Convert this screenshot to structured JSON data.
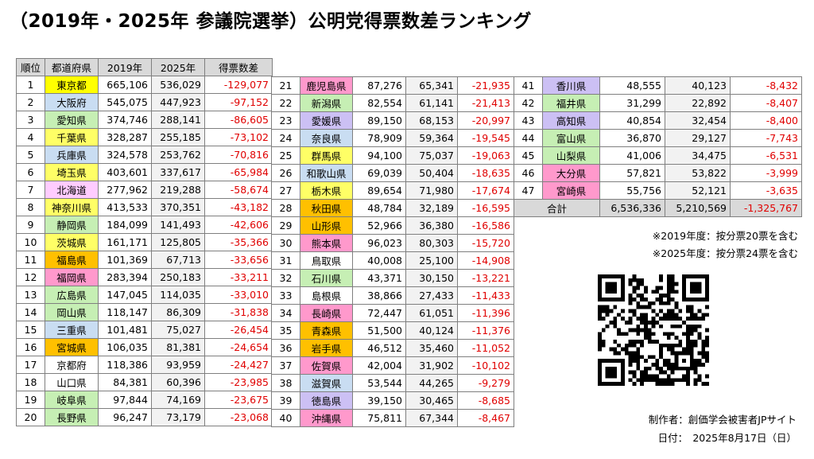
{
  "title": "（2019年・2025年 参議院選挙）公明党得票数差ランキング",
  "headers": {
    "rank": "順位",
    "pref": "都道府県",
    "y2019": "2019年",
    "y2025": "2025年",
    "diff": "得票数差"
  },
  "colors": {
    "red": "#ff7c80",
    "pink": "#ffccff",
    "yellow": "#ffff66",
    "lightblue": "#b4c7e7",
    "green": "#c6efce",
    "purple": "#ccc0f4",
    "orange": "#ffc000",
    "gray": "#ffffff"
  },
  "rows": [
    {
      "rank": "1",
      "pref": "東京都",
      "v2019": "665,106",
      "v2025": "536,029",
      "diff": "-129,077",
      "color": "#ffff00"
    },
    {
      "rank": "2",
      "pref": "大阪府",
      "v2019": "545,075",
      "v2025": "447,923",
      "diff": "-97,152",
      "color": "#c9ddf2"
    },
    {
      "rank": "3",
      "pref": "愛知県",
      "v2019": "374,746",
      "v2025": "288,141",
      "diff": "-86,605",
      "color": "#c6efb4"
    },
    {
      "rank": "4",
      "pref": "千葉県",
      "v2019": "328,287",
      "v2025": "255,185",
      "diff": "-73,102",
      "color": "#ffff66"
    },
    {
      "rank": "5",
      "pref": "兵庫県",
      "v2019": "324,578",
      "v2025": "253,762",
      "diff": "-70,816",
      "color": "#c9ddf2"
    },
    {
      "rank": "6",
      "pref": "埼玉県",
      "v2019": "403,601",
      "v2025": "337,617",
      "diff": "-65,984",
      "color": "#ffff66"
    },
    {
      "rank": "7",
      "pref": "北海道",
      "v2019": "277,962",
      "v2025": "219,288",
      "diff": "-58,674",
      "color": "#ffccff"
    },
    {
      "rank": "8",
      "pref": "神奈川県",
      "v2019": "413,533",
      "v2025": "370,351",
      "diff": "-43,182",
      "color": "#ffff66"
    },
    {
      "rank": "9",
      "pref": "静岡県",
      "v2019": "184,099",
      "v2025": "141,493",
      "diff": "-42,606",
      "color": "#c6efb4"
    },
    {
      "rank": "10",
      "pref": "茨城県",
      "v2019": "161,171",
      "v2025": "125,805",
      "diff": "-35,366",
      "color": "#ffff66"
    },
    {
      "rank": "11",
      "pref": "福島県",
      "v2019": "101,369",
      "v2025": "67,713",
      "diff": "-33,656",
      "color": "#ffc000"
    },
    {
      "rank": "12",
      "pref": "福岡県",
      "v2019": "283,394",
      "v2025": "250,183",
      "diff": "-33,211",
      "color": "#ff99cc"
    },
    {
      "rank": "13",
      "pref": "広島県",
      "v2019": "147,045",
      "v2025": "114,035",
      "diff": "-33,010",
      "color": "#c6efb4"
    },
    {
      "rank": "14",
      "pref": "岡山県",
      "v2019": "118,147",
      "v2025": "86,309",
      "diff": "-31,838",
      "color": "#c6efb4"
    },
    {
      "rank": "15",
      "pref": "三重県",
      "v2019": "101,481",
      "v2025": "75,027",
      "diff": "-26,454",
      "color": "#c9ddf2"
    },
    {
      "rank": "16",
      "pref": "宮城県",
      "v2019": "106,035",
      "v2025": "81,381",
      "diff": "-24,654",
      "color": "#ffc000"
    },
    {
      "rank": "17",
      "pref": "京都府",
      "v2019": "118,386",
      "v2025": "93,959",
      "diff": "-24,427",
      "color": "#ffffff"
    },
    {
      "rank": "18",
      "pref": "山口県",
      "v2019": "84,381",
      "v2025": "60,396",
      "diff": "-23,985",
      "color": "#ffffff"
    },
    {
      "rank": "19",
      "pref": "岐阜県",
      "v2019": "97,844",
      "v2025": "74,169",
      "diff": "-23,675",
      "color": "#c6efb4"
    },
    {
      "rank": "20",
      "pref": "長野県",
      "v2019": "96,247",
      "v2025": "73,179",
      "diff": "-23,068",
      "color": "#c6efb4"
    },
    {
      "rank": "21",
      "pref": "鹿児島県",
      "v2019": "87,276",
      "v2025": "65,341",
      "diff": "-21,935",
      "color": "#ff99cc"
    },
    {
      "rank": "22",
      "pref": "新潟県",
      "v2019": "82,554",
      "v2025": "61,141",
      "diff": "-21,413",
      "color": "#c6efb4"
    },
    {
      "rank": "23",
      "pref": "愛媛県",
      "v2019": "89,150",
      "v2025": "68,153",
      "diff": "-20,997",
      "color": "#ccc0f4"
    },
    {
      "rank": "24",
      "pref": "奈良県",
      "v2019": "78,909",
      "v2025": "59,364",
      "diff": "-19,545",
      "color": "#c9ddf2"
    },
    {
      "rank": "25",
      "pref": "群馬県",
      "v2019": "94,100",
      "v2025": "75,037",
      "diff": "-19,063",
      "color": "#ffff66"
    },
    {
      "rank": "26",
      "pref": "和歌山県",
      "v2019": "69,039",
      "v2025": "50,404",
      "diff": "-18,635",
      "color": "#c9ddf2"
    },
    {
      "rank": "27",
      "pref": "栃木県",
      "v2019": "89,654",
      "v2025": "71,980",
      "diff": "-17,674",
      "color": "#ffff66"
    },
    {
      "rank": "28",
      "pref": "秋田県",
      "v2019": "48,784",
      "v2025": "32,189",
      "diff": "-16,595",
      "color": "#ffc000"
    },
    {
      "rank": "29",
      "pref": "山形県",
      "v2019": "52,966",
      "v2025": "36,380",
      "diff": "-16,586",
      "color": "#ffc000"
    },
    {
      "rank": "30",
      "pref": "熊本県",
      "v2019": "96,023",
      "v2025": "80,303",
      "diff": "-15,720",
      "color": "#ff99cc"
    },
    {
      "rank": "31",
      "pref": "鳥取県",
      "v2019": "40,008",
      "v2025": "25,100",
      "diff": "-14,908",
      "color": "#ffffff"
    },
    {
      "rank": "32",
      "pref": "石川県",
      "v2019": "43,371",
      "v2025": "30,150",
      "diff": "-13,221",
      "color": "#c6efb4"
    },
    {
      "rank": "33",
      "pref": "島根県",
      "v2019": "38,866",
      "v2025": "27,433",
      "diff": "-11,433",
      "color": "#ffffff"
    },
    {
      "rank": "34",
      "pref": "長崎県",
      "v2019": "72,447",
      "v2025": "61,051",
      "diff": "-11,396",
      "color": "#ff99cc"
    },
    {
      "rank": "35",
      "pref": "青森県",
      "v2019": "51,500",
      "v2025": "40,124",
      "diff": "-11,376",
      "color": "#ffc000"
    },
    {
      "rank": "36",
      "pref": "岩手県",
      "v2019": "46,512",
      "v2025": "35,460",
      "diff": "-11,052",
      "color": "#ffc000"
    },
    {
      "rank": "37",
      "pref": "佐賀県",
      "v2019": "42,004",
      "v2025": "31,902",
      "diff": "-10,102",
      "color": "#ff99cc"
    },
    {
      "rank": "38",
      "pref": "滋賀県",
      "v2019": "53,544",
      "v2025": "44,265",
      "diff": "-9,279",
      "color": "#c9ddf2"
    },
    {
      "rank": "39",
      "pref": "徳島県",
      "v2019": "39,150",
      "v2025": "30,465",
      "diff": "-8,685",
      "color": "#ccc0f4"
    },
    {
      "rank": "40",
      "pref": "沖縄県",
      "v2019": "75,811",
      "v2025": "67,344",
      "diff": "-8,467",
      "color": "#ff99cc"
    },
    {
      "rank": "41",
      "pref": "香川県",
      "v2019": "48,555",
      "v2025": "40,123",
      "diff": "-8,432",
      "color": "#ccc0f4"
    },
    {
      "rank": "42",
      "pref": "福井県",
      "v2019": "31,299",
      "v2025": "22,892",
      "diff": "-8,407",
      "color": "#c6efb4"
    },
    {
      "rank": "43",
      "pref": "高知県",
      "v2019": "40,854",
      "v2025": "32,454",
      "diff": "-8,400",
      "color": "#ccc0f4"
    },
    {
      "rank": "44",
      "pref": "富山県",
      "v2019": "36,870",
      "v2025": "29,127",
      "diff": "-7,743",
      "color": "#c6efb4"
    },
    {
      "rank": "45",
      "pref": "山梨県",
      "v2019": "41,006",
      "v2025": "34,475",
      "diff": "-6,531",
      "color": "#c6efb4"
    },
    {
      "rank": "46",
      "pref": "大分県",
      "v2019": "57,821",
      "v2025": "53,822",
      "diff": "-3,999",
      "color": "#ff99cc"
    },
    {
      "rank": "47",
      "pref": "宮崎県",
      "v2019": "55,756",
      "v2025": "52,121",
      "diff": "-3,635",
      "color": "#ff99cc"
    }
  ],
  "total": {
    "label": "合計",
    "v2019": "6,536,336",
    "v2025": "5,210,569",
    "diff": "-1,325,767"
  },
  "notes": [
    "※2019年度：按分票20票を含む",
    "※2025年度：按分票24票を含む"
  ],
  "credit": {
    "maker": "制作者：創価学会被害者JPサイト",
    "date": "日付：　2025年8月17日（日）"
  }
}
